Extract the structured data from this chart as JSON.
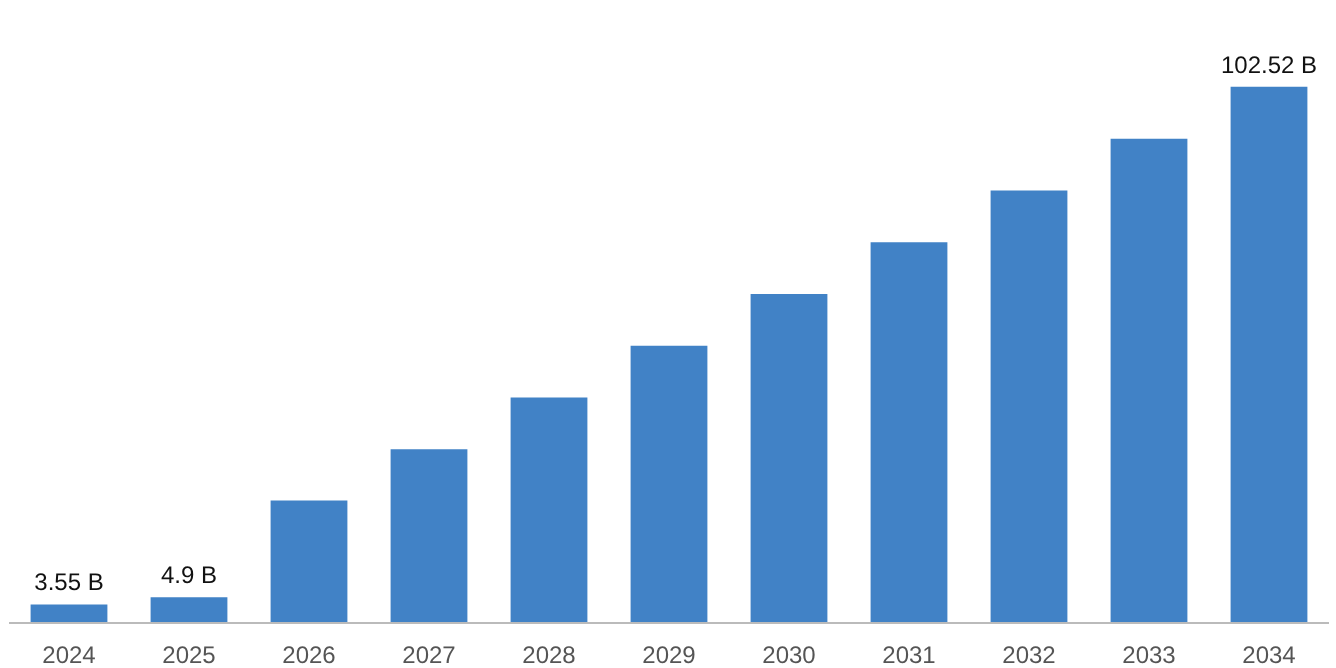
{
  "chart_data": {
    "type": "bar",
    "categories": [
      "2024",
      "2025",
      "2026",
      "2027",
      "2028",
      "2029",
      "2030",
      "2031",
      "2032",
      "2033",
      "2034"
    ],
    "values": [
      3.55,
      4.9,
      23.4,
      33.2,
      43.1,
      53.0,
      62.9,
      72.8,
      82.7,
      92.6,
      102.52
    ],
    "value_labels": [
      "3.55 B",
      "4.9 B",
      null,
      null,
      null,
      null,
      null,
      null,
      null,
      null,
      "102.52 B"
    ],
    "color": "#4182c6",
    "grid": false
  }
}
